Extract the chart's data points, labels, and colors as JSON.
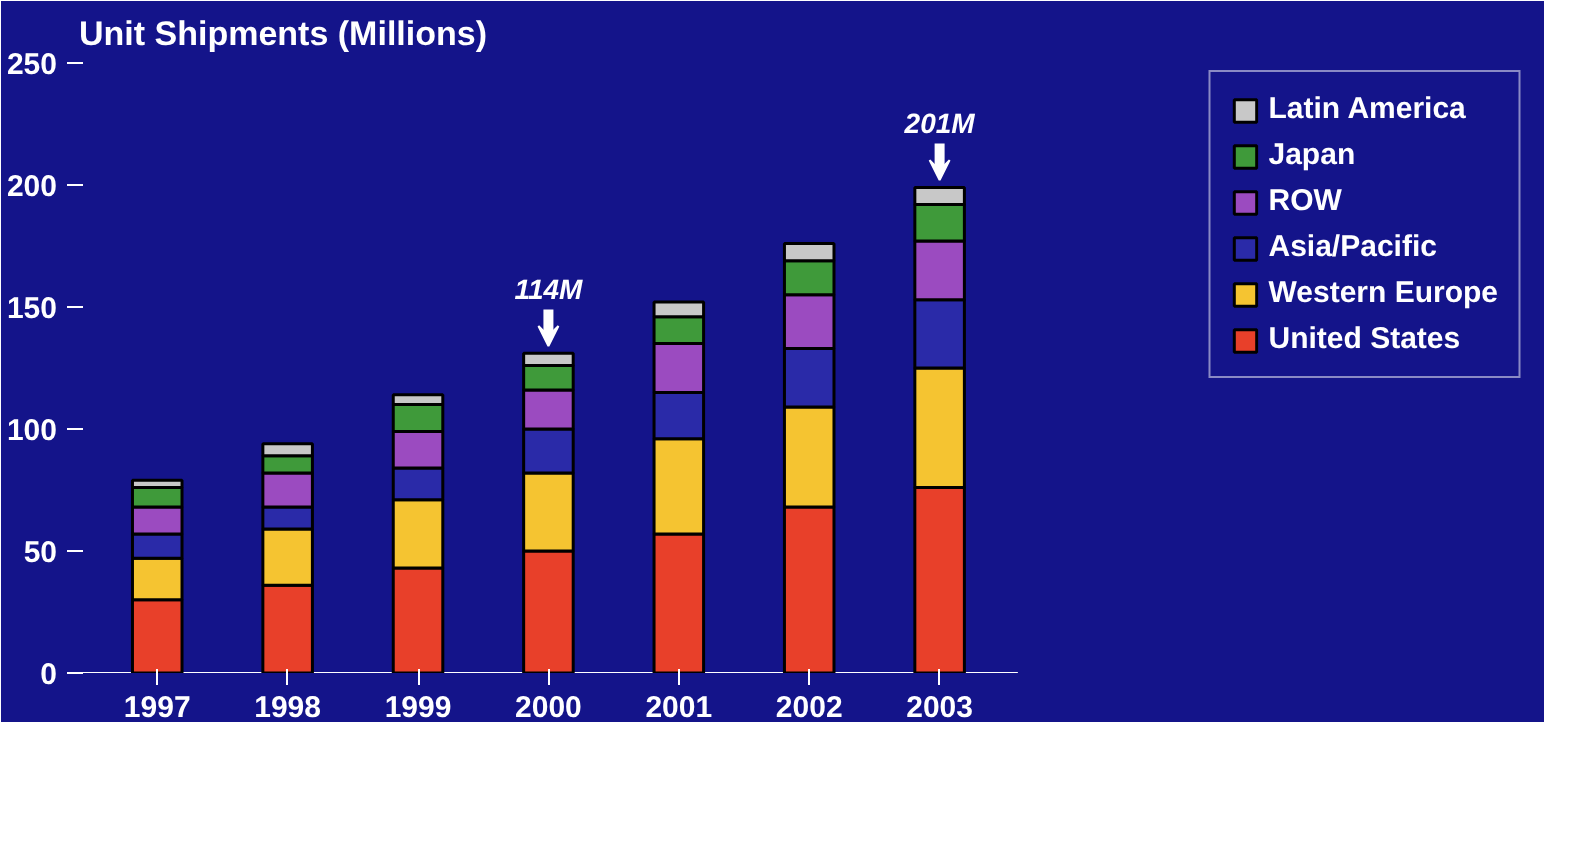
{
  "chart_data": {
    "type": "bar",
    "title": "Unit Shipments (Millions)",
    "stacked": true,
    "legend": "right",
    "grid": false,
    "categories": [
      "1997",
      "1998",
      "1999",
      "2000",
      "2001",
      "2002",
      "2003"
    ],
    "series": [
      {
        "name": "United States",
        "color": "#e8402a",
        "values": [
          30,
          36,
          43,
          50,
          57,
          68,
          76
        ]
      },
      {
        "name": "Western Europe",
        "color": "#f5c431",
        "values": [
          17,
          23,
          28,
          32,
          39,
          41,
          49
        ]
      },
      {
        "name": "Asia/Pacific",
        "color": "#2a2aa8",
        "values": [
          10,
          9,
          13,
          18,
          19,
          24,
          28
        ]
      },
      {
        "name": "ROW",
        "color": "#9b4bc0",
        "values": [
          11,
          14,
          15,
          16,
          20,
          22,
          24
        ]
      },
      {
        "name": "Japan",
        "color": "#3f9a3a",
        "values": [
          8,
          7,
          11,
          10,
          11,
          14,
          15
        ]
      },
      {
        "name": "Latin America",
        "color": "#c8c8c8",
        "values": [
          3,
          5,
          4,
          5,
          6,
          7,
          7
        ]
      }
    ],
    "ylim": [
      0,
      250
    ],
    "yticks": [
      0,
      50,
      100,
      150,
      200,
      250
    ],
    "annotations": [
      {
        "text": "114M",
        "x": "2000",
        "y": 132
      },
      {
        "text": "201M",
        "x": "2003",
        "y": 200
      }
    ]
  }
}
